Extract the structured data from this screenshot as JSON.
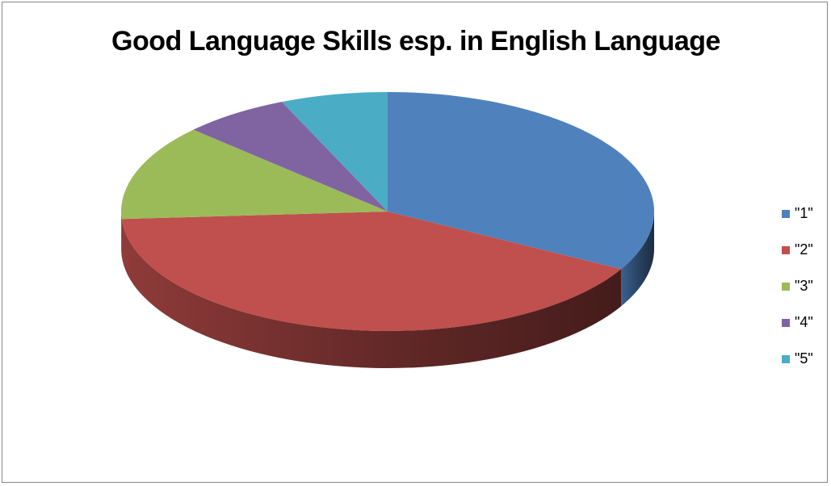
{
  "chart_data": {
    "type": "pie",
    "style": "3d",
    "title": "Good Language Skills esp. in English Language",
    "categories": [
      "\"1\"",
      "\"2\"",
      "\"3\"",
      "\"4\"",
      "\"5\""
    ],
    "values": [
      33,
      41,
      13,
      6.5,
      6.5
    ],
    "colors": [
      "#4F81BD",
      "#C0504D",
      "#9BBB59",
      "#8064A2",
      "#4BACC6"
    ],
    "start_angle_deg": 90,
    "direction": "clockwise",
    "legend_position": "right"
  }
}
